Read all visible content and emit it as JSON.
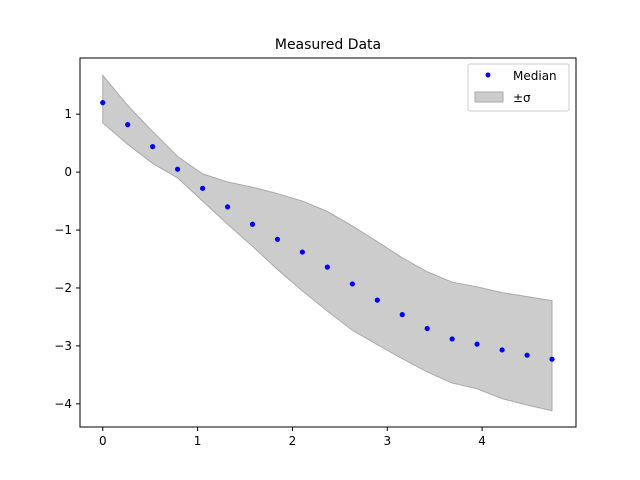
{
  "chart_data": {
    "type": "scatter",
    "title": "Measured Data",
    "xlabel": "",
    "ylabel": "",
    "xlim": [
      -0.24,
      4.99
    ],
    "ylim": [
      -4.4,
      1.97
    ],
    "xticks": [
      0,
      1,
      2,
      3,
      4
    ],
    "yticks": [
      -4,
      -3,
      -2,
      -1,
      0,
      1
    ],
    "grid": false,
    "legend_position": "top-right",
    "legend": [
      {
        "label": "Median",
        "marker": "point"
      },
      {
        "label": "±σ",
        "marker": "band"
      }
    ],
    "series": [
      {
        "name": "Median",
        "color": "#0000ff",
        "x": [
          0,
          0.263,
          0.526,
          0.789,
          1.053,
          1.316,
          1.579,
          1.842,
          2.105,
          2.368,
          2.632,
          2.895,
          3.158,
          3.421,
          3.684,
          3.947,
          4.211,
          4.474,
          4.737
        ],
        "y": [
          1.2,
          0.82,
          0.44,
          0.05,
          -0.28,
          -0.6,
          -0.9,
          -1.16,
          -1.38,
          -1.64,
          -1.93,
          -2.21,
          -2.46,
          -2.7,
          -2.88,
          -2.97,
          -3.07,
          -3.16,
          -3.23
        ]
      }
    ],
    "band": {
      "name": "±σ",
      "fill": "#cccccc",
      "edge": "#aaaaaa",
      "x": [
        0,
        0.263,
        0.526,
        0.789,
        1.053,
        1.316,
        1.579,
        1.842,
        2.105,
        2.368,
        2.632,
        2.895,
        3.158,
        3.421,
        3.684,
        3.947,
        4.211,
        4.474,
        4.737
      ],
      "upper": [
        1.67,
        1.15,
        0.7,
        0.27,
        -0.03,
        -0.17,
        -0.26,
        -0.37,
        -0.5,
        -0.68,
        -0.93,
        -1.2,
        -1.48,
        -1.72,
        -1.9,
        -1.98,
        -2.08,
        -2.15,
        -2.22
      ],
      "lower": [
        0.85,
        0.48,
        0.15,
        -0.1,
        -0.5,
        -0.9,
        -1.28,
        -1.68,
        -2.05,
        -2.4,
        -2.73,
        -2.98,
        -3.22,
        -3.45,
        -3.64,
        -3.74,
        -3.91,
        -4.02,
        -4.12
      ]
    }
  }
}
